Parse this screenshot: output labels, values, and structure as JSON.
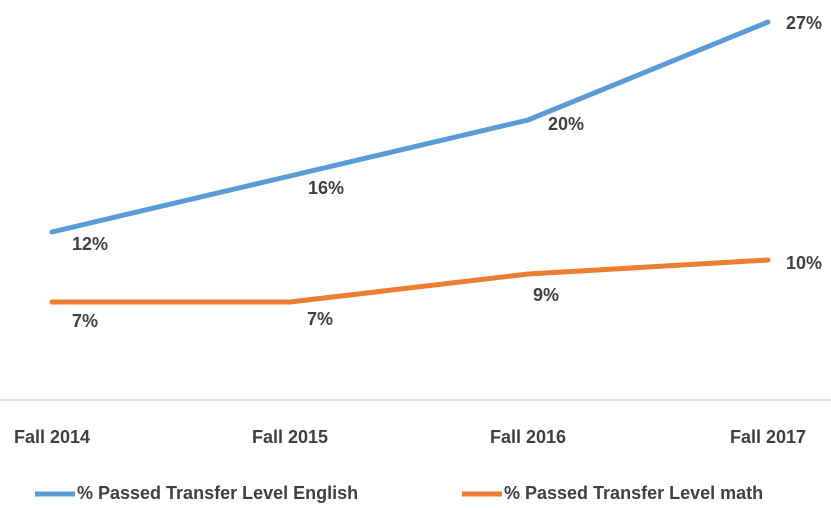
{
  "chart_data": {
    "type": "line",
    "categories": [
      "Fall 2014",
      "Fall 2015",
      "Fall 2016",
      "Fall 2017"
    ],
    "series": [
      {
        "name": "% Passed Transfer Level English",
        "color": "#5b9bd5",
        "values": [
          12,
          16,
          20,
          27
        ],
        "value_labels": [
          "12%",
          "16%",
          "20%",
          "27%"
        ]
      },
      {
        "name": "% Passed Transfer Level math",
        "color": "#ed7d31",
        "values": [
          7,
          7,
          9,
          10
        ],
        "value_labels": [
          "7%",
          "7%",
          "9%",
          "10%"
        ]
      }
    ],
    "ylim": [
      0,
      28
    ],
    "grid": false,
    "legend": "bottom"
  }
}
